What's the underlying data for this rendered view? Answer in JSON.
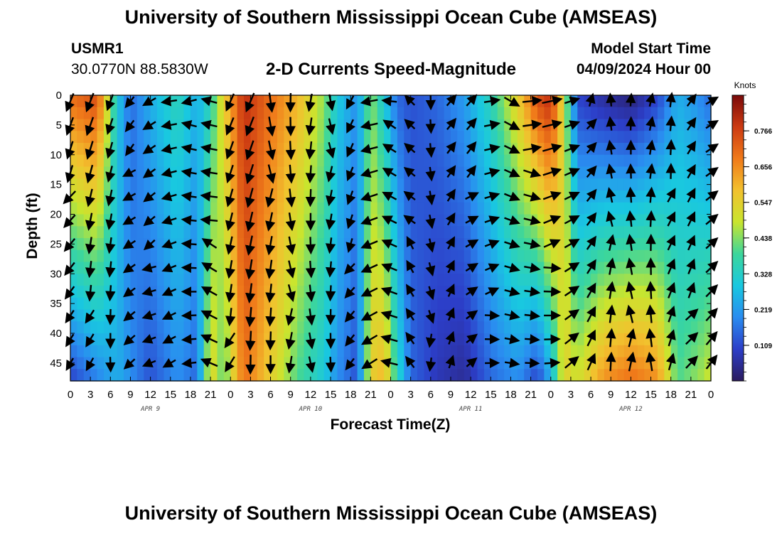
{
  "titles": {
    "main": "University of Southern Mississippi Ocean Cube (AMSEAS)",
    "bottom": "University of Southern Mississippi Ocean Cube (AMSEAS)"
  },
  "station": {
    "name": "USMR1",
    "coords": "30.0770N  88.5830W"
  },
  "plot_title": "2-D Currents Speed-Magnitude",
  "model_start": {
    "label": "Model Start Time",
    "value": "04/09/2024 Hour 00"
  },
  "colors": {
    "scale": [
      "#2b1b5e",
      "#2c3ec8",
      "#2a8cf0",
      "#19c8e0",
      "#3cd69c",
      "#c9e52e",
      "#f2c12e",
      "#f07a1a",
      "#cc3a12",
      "#7a0a0a"
    ]
  },
  "chart_data": {
    "type": "heatmap",
    "title": "2-D Currents Speed-Magnitude",
    "xlabel": "Forecast Time(Z)",
    "ylabel": "Depth (ft)",
    "x_range": [
      0,
      96
    ],
    "y_range": [
      0,
      48
    ],
    "y_inverted": true,
    "x_ticks": [
      "0",
      "3",
      "6",
      "9",
      "12",
      "15",
      "18",
      "21",
      "0",
      "3",
      "6",
      "9",
      "12",
      "15",
      "18",
      "21",
      "0",
      "3",
      "6",
      "9",
      "12",
      "15",
      "18",
      "21",
      "0",
      "3",
      "6",
      "9",
      "12",
      "15",
      "18",
      "21",
      "0"
    ],
    "x_tick_hours": [
      0,
      3,
      6,
      9,
      12,
      15,
      18,
      21,
      24,
      27,
      30,
      33,
      36,
      39,
      42,
      45,
      48,
      51,
      54,
      57,
      60,
      63,
      66,
      69,
      72,
      75,
      78,
      81,
      84,
      87,
      90,
      93,
      96
    ],
    "date_labels": [
      {
        "label": "APR 9",
        "hour": 12
      },
      {
        "label": "APR 10",
        "hour": 36
      },
      {
        "label": "APR 11",
        "hour": 60
      },
      {
        "label": "APR 12",
        "hour": 84
      }
    ],
    "y_ticks": [
      "0",
      "5",
      "10",
      "15",
      "20",
      "25",
      "30",
      "35",
      "40",
      "45"
    ],
    "y_tick_values": [
      0,
      5,
      10,
      15,
      20,
      25,
      30,
      35,
      40,
      45
    ],
    "colorbar": {
      "unit": "Knots",
      "range": [
        0,
        0.875
      ],
      "labels": [
        "0.766",
        "0.656",
        "0.547",
        "0.438",
        "0.328",
        "0.219",
        "0.109"
      ],
      "label_values": [
        0.766,
        0.656,
        0.547,
        0.438,
        0.328,
        0.219,
        0.109
      ]
    },
    "speed_bands": [
      {
        "hour": 0,
        "surface": 0.7,
        "bottom": 0.1
      },
      {
        "hour": 4,
        "surface": 0.75,
        "bottom": 0.18
      },
      {
        "hour": 7,
        "surface": 0.3,
        "bottom": 0.25
      },
      {
        "hour": 9,
        "surface": 0.15,
        "bottom": 0.2
      },
      {
        "hour": 12,
        "surface": 0.25,
        "bottom": 0.12
      },
      {
        "hour": 16,
        "surface": 0.35,
        "bottom": 0.2
      },
      {
        "hour": 19,
        "surface": 0.25,
        "bottom": 0.15
      },
      {
        "hour": 21,
        "surface": 0.35,
        "bottom": 0.55
      },
      {
        "hour": 23,
        "surface": 0.55,
        "bottom": 0.4
      },
      {
        "hour": 26,
        "surface": 0.8,
        "bottom": 0.7
      },
      {
        "hour": 30,
        "surface": 0.7,
        "bottom": 0.55
      },
      {
        "hour": 34,
        "surface": 0.6,
        "bottom": 0.4
      },
      {
        "hour": 38,
        "surface": 0.45,
        "bottom": 0.3
      },
      {
        "hour": 40,
        "surface": 0.3,
        "bottom": 0.2
      },
      {
        "hour": 43,
        "surface": 0.2,
        "bottom": 0.12
      },
      {
        "hour": 45,
        "surface": 0.45,
        "bottom": 0.55
      },
      {
        "hour": 47,
        "surface": 0.3,
        "bottom": 0.6
      },
      {
        "hour": 49,
        "surface": 0.15,
        "bottom": 0.35
      },
      {
        "hour": 51,
        "surface": 0.12,
        "bottom": 0.15
      },
      {
        "hour": 55,
        "surface": 0.15,
        "bottom": 0.08
      },
      {
        "hour": 59,
        "surface": 0.22,
        "bottom": 0.05
      },
      {
        "hour": 63,
        "surface": 0.35,
        "bottom": 0.15
      },
      {
        "hour": 67,
        "surface": 0.55,
        "bottom": 0.2
      },
      {
        "hour": 70,
        "surface": 0.75,
        "bottom": 0.1
      },
      {
        "hour": 72,
        "surface": 0.8,
        "bottom": 0.25
      },
      {
        "hour": 74,
        "surface": 0.5,
        "bottom": 0.55
      },
      {
        "hour": 76,
        "surface": 0.1,
        "bottom": 0.5
      },
      {
        "hour": 80,
        "surface": 0.05,
        "bottom": 0.65
      },
      {
        "hour": 84,
        "surface": 0.02,
        "bottom": 0.7
      },
      {
        "hour": 88,
        "surface": 0.1,
        "bottom": 0.65
      },
      {
        "hour": 91,
        "surface": 0.25,
        "bottom": 0.4
      },
      {
        "hour": 94,
        "surface": 0.2,
        "bottom": 0.45
      },
      {
        "hour": 96,
        "surface": 0.15,
        "bottom": 0.5
      }
    ],
    "vector_direction_deg": [
      {
        "hour": 0,
        "deg": 210
      },
      {
        "hour": 6,
        "deg": 190
      },
      {
        "hour": 9,
        "deg": 230
      },
      {
        "hour": 14,
        "deg": 250
      },
      {
        "hour": 18,
        "deg": 270
      },
      {
        "hour": 21,
        "deg": 290
      },
      {
        "hour": 24,
        "deg": 200
      },
      {
        "hour": 30,
        "deg": 180
      },
      {
        "hour": 40,
        "deg": 180
      },
      {
        "hour": 44,
        "deg": 240
      },
      {
        "hour": 48,
        "deg": 290
      },
      {
        "hour": 52,
        "deg": 330
      },
      {
        "hour": 56,
        "deg": 20
      },
      {
        "hour": 60,
        "deg": 50
      },
      {
        "hour": 66,
        "deg": 110
      },
      {
        "hour": 72,
        "deg": 80
      },
      {
        "hour": 76,
        "deg": 60
      },
      {
        "hour": 80,
        "deg": 0
      },
      {
        "hour": 88,
        "deg": 0
      },
      {
        "hour": 92,
        "deg": 30
      },
      {
        "hour": 96,
        "deg": 50
      }
    ]
  }
}
